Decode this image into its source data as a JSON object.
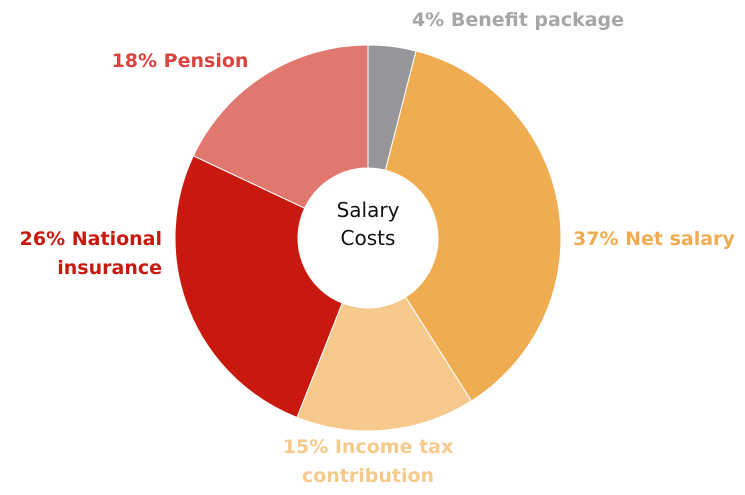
{
  "chart_data": {
    "type": "donut",
    "center_label": "Salary Costs",
    "categories": [
      "Benefit package",
      "Net salary",
      "Income tax contribution",
      "National insurance",
      "Pension"
    ],
    "values": [
      4,
      37,
      15,
      26,
      18
    ],
    "value_labels": [
      "4%",
      "37%",
      "15%",
      "26%",
      "18%"
    ],
    "colors": [
      "#96969a",
      "#f0ac50",
      "#f6ca8c",
      "#c9190f",
      "#e07870"
    ],
    "label_colors": [
      "#a6a6a6",
      "#f0ac50",
      "#f6ca8c",
      "#c9190f",
      "#d9443f"
    ]
  }
}
